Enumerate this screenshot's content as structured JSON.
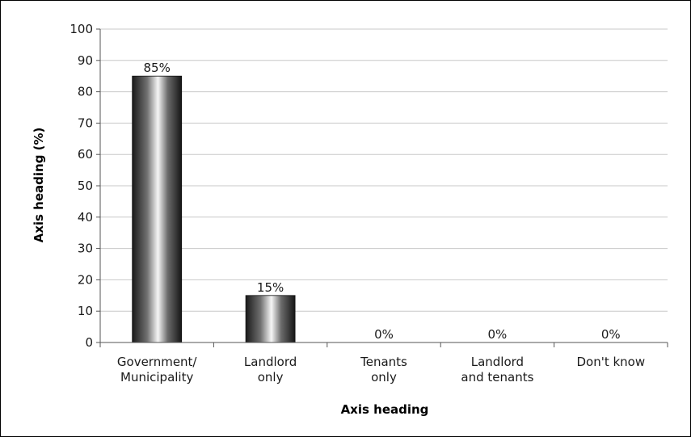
{
  "chart_data": {
    "type": "bar",
    "title": "",
    "categories": [
      [
        "Government/",
        "Municipality"
      ],
      [
        "Landlord",
        "only"
      ],
      [
        "Tenants",
        "only"
      ],
      [
        "Landlord",
        "and tenants"
      ],
      [
        "Don't know"
      ]
    ],
    "values": [
      85,
      15,
      0,
      0,
      0
    ],
    "data_labels": [
      "85%",
      "15%",
      "0%",
      "0%",
      "0%"
    ],
    "xlabel": "Axis heading",
    "ylabel": "Axis heading (%)",
    "ylim": [
      0,
      100
    ],
    "yticks": [
      "0",
      "10",
      "20",
      "30",
      "40",
      "50",
      "60",
      "70",
      "80",
      "90",
      "100"
    ],
    "grid": true,
    "legend": "none",
    "colors": {
      "bar_dark": "#1e1e1e",
      "bar_light": "#f2f2f2",
      "grid": "#c8c8c8",
      "axis": "#555555"
    }
  }
}
